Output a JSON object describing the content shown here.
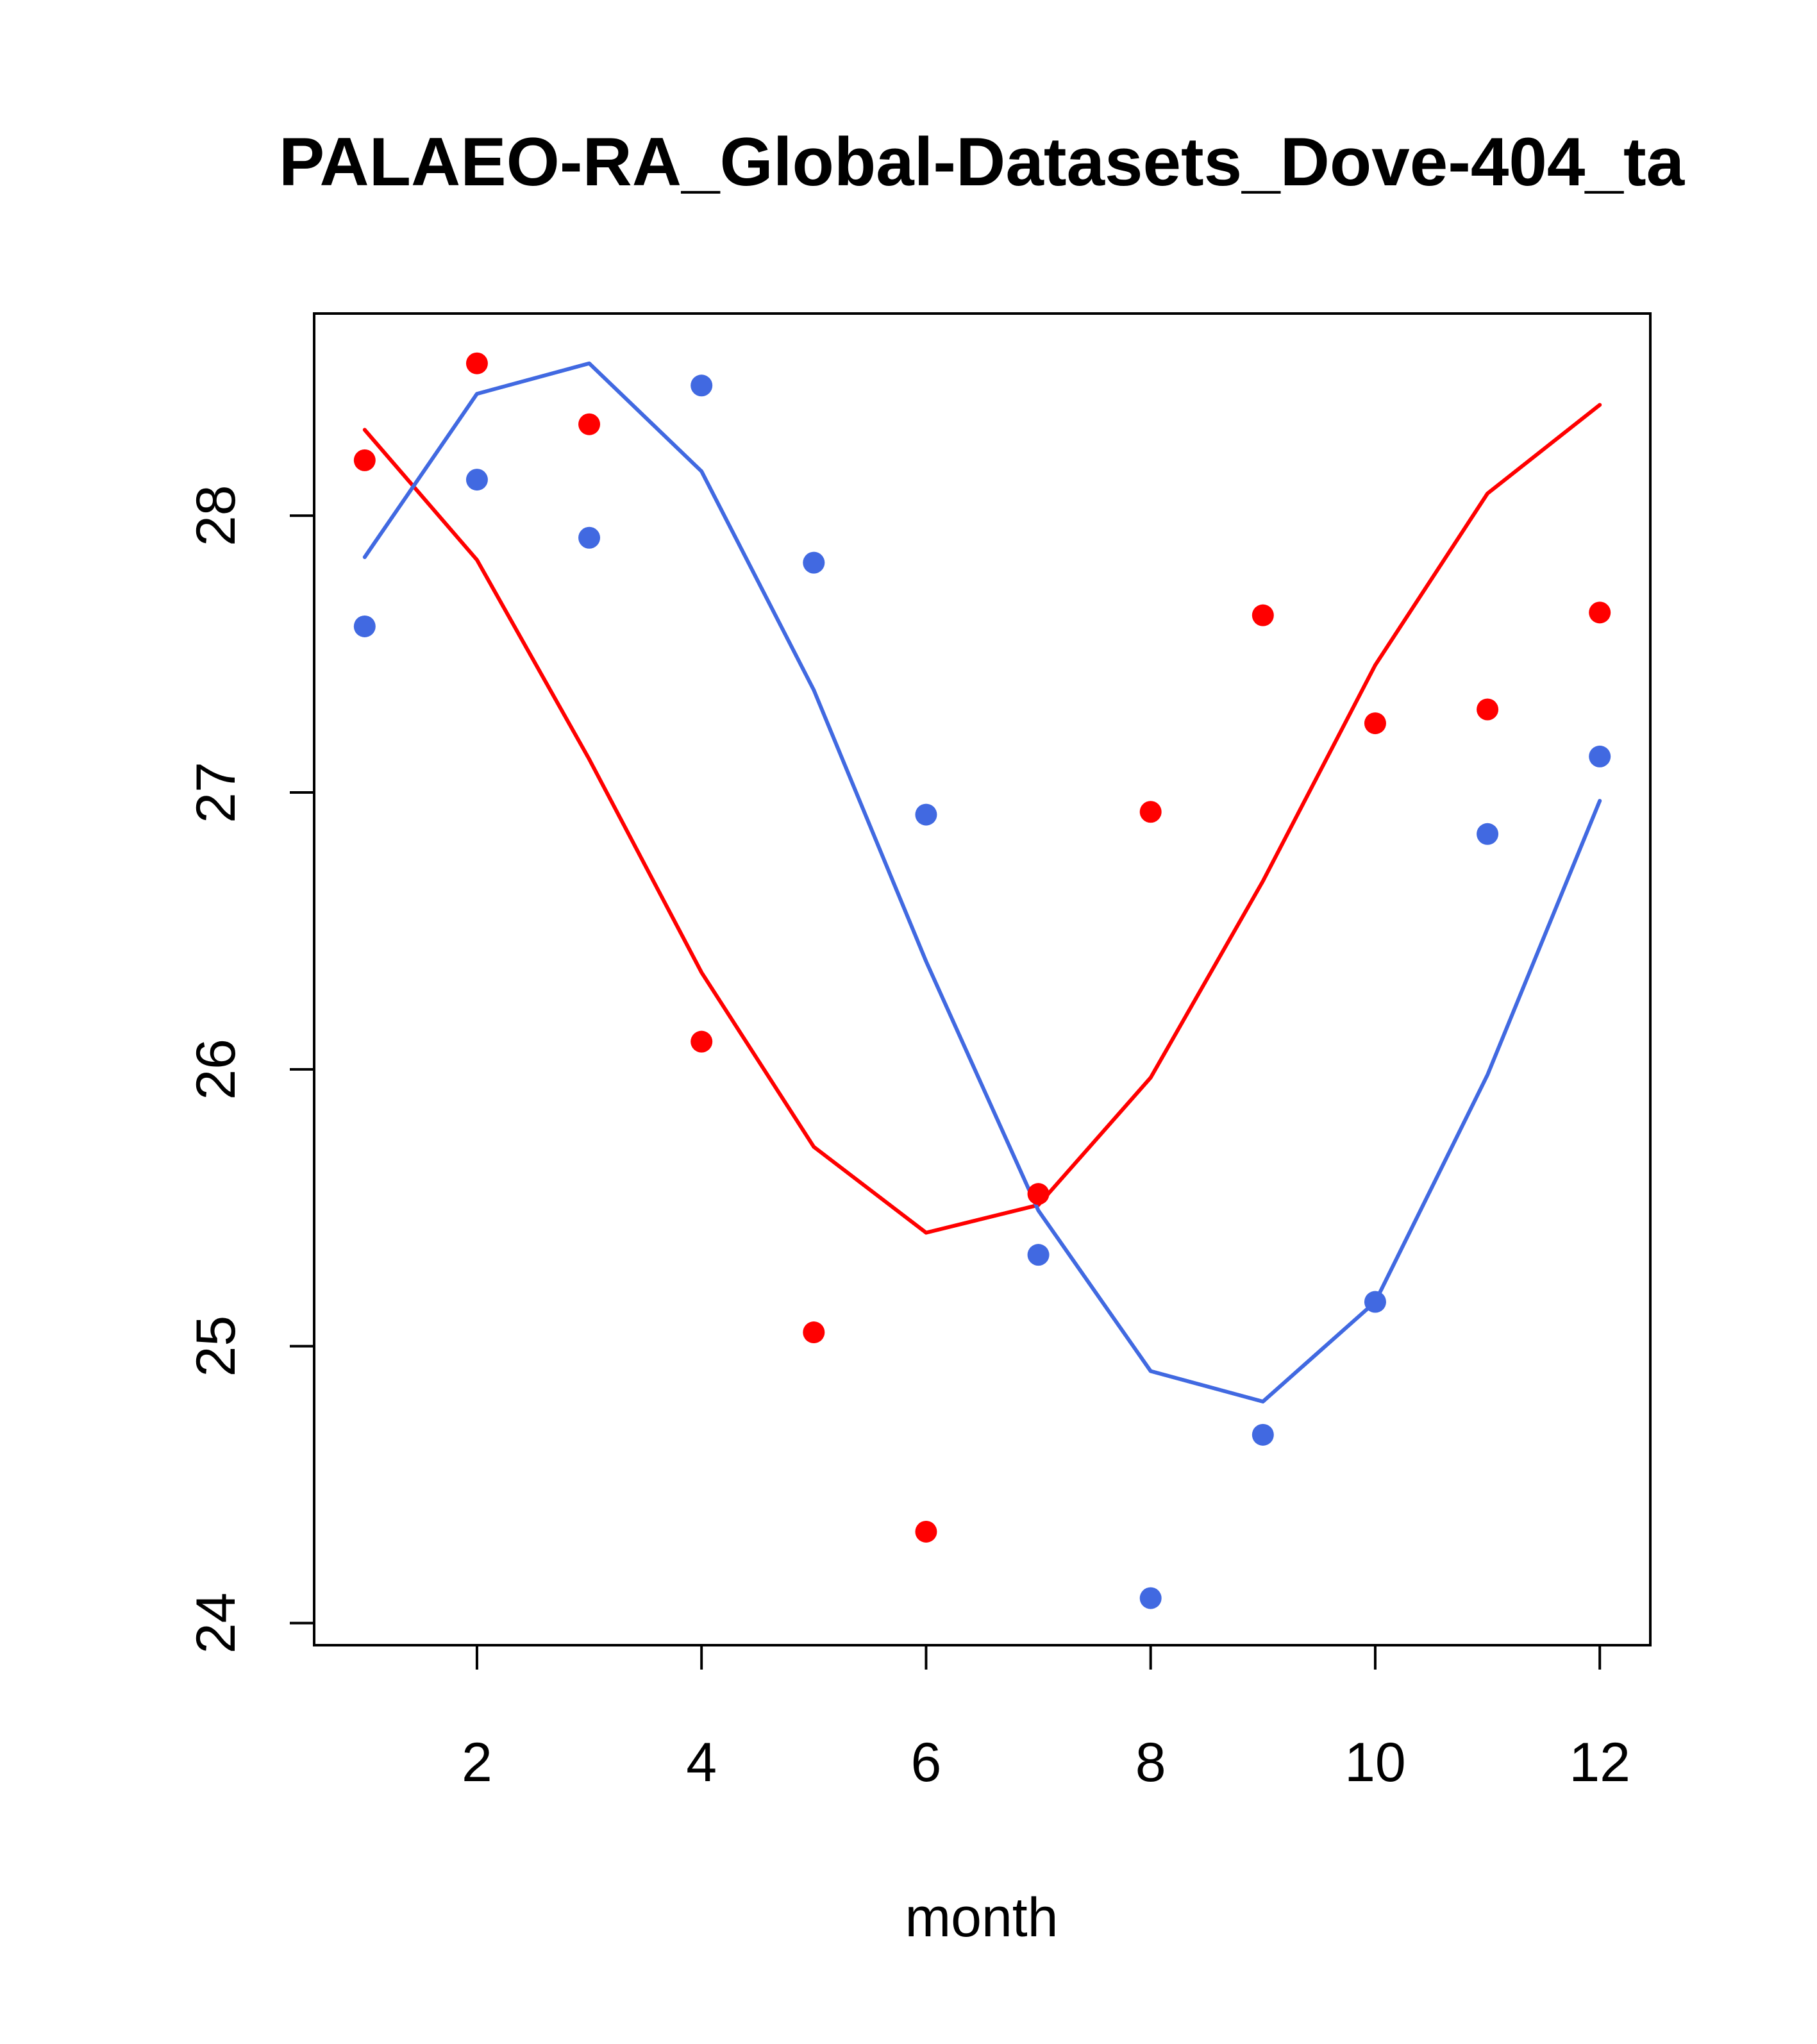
{
  "chart_data": {
    "type": "line",
    "title": "PALAEO-RA_Global-Datasets_Dove-404_ta",
    "xlabel": "month",
    "ylabel": "",
    "xlim": [
      0.55,
      12.45
    ],
    "ylim": [
      23.92,
      28.73
    ],
    "xticks": [
      2,
      4,
      6,
      8,
      10,
      12
    ],
    "yticks": [
      24,
      25,
      26,
      27,
      28
    ],
    "x": [
      1,
      2,
      3,
      4,
      5,
      6,
      7,
      8,
      9,
      10,
      11,
      12
    ],
    "series": [
      {
        "name": "red-line",
        "kind": "line",
        "color": "#ff0000",
        "values": [
          28.31,
          27.84,
          27.12,
          26.35,
          25.72,
          25.41,
          25.51,
          25.97,
          26.68,
          27.46,
          28.08,
          28.4
        ]
      },
      {
        "name": "blue-line",
        "kind": "line",
        "color": "#4169e1",
        "values": [
          27.85,
          28.44,
          28.55,
          28.16,
          27.37,
          26.39,
          25.49,
          24.91,
          24.8,
          25.16,
          25.98,
          26.97
        ]
      },
      {
        "name": "red-points",
        "kind": "points",
        "color": "#ff0000",
        "values": [
          28.2,
          28.55,
          28.33,
          26.1,
          25.05,
          24.33,
          25.55,
          26.93,
          27.64,
          27.25,
          27.3,
          27.65
        ]
      },
      {
        "name": "blue-points",
        "kind": "points",
        "color": "#4169e1",
        "values": [
          27.6,
          28.13,
          27.92,
          28.47,
          27.83,
          26.92,
          25.33,
          24.09,
          24.68,
          25.16,
          26.85,
          27.13
        ]
      }
    ]
  }
}
